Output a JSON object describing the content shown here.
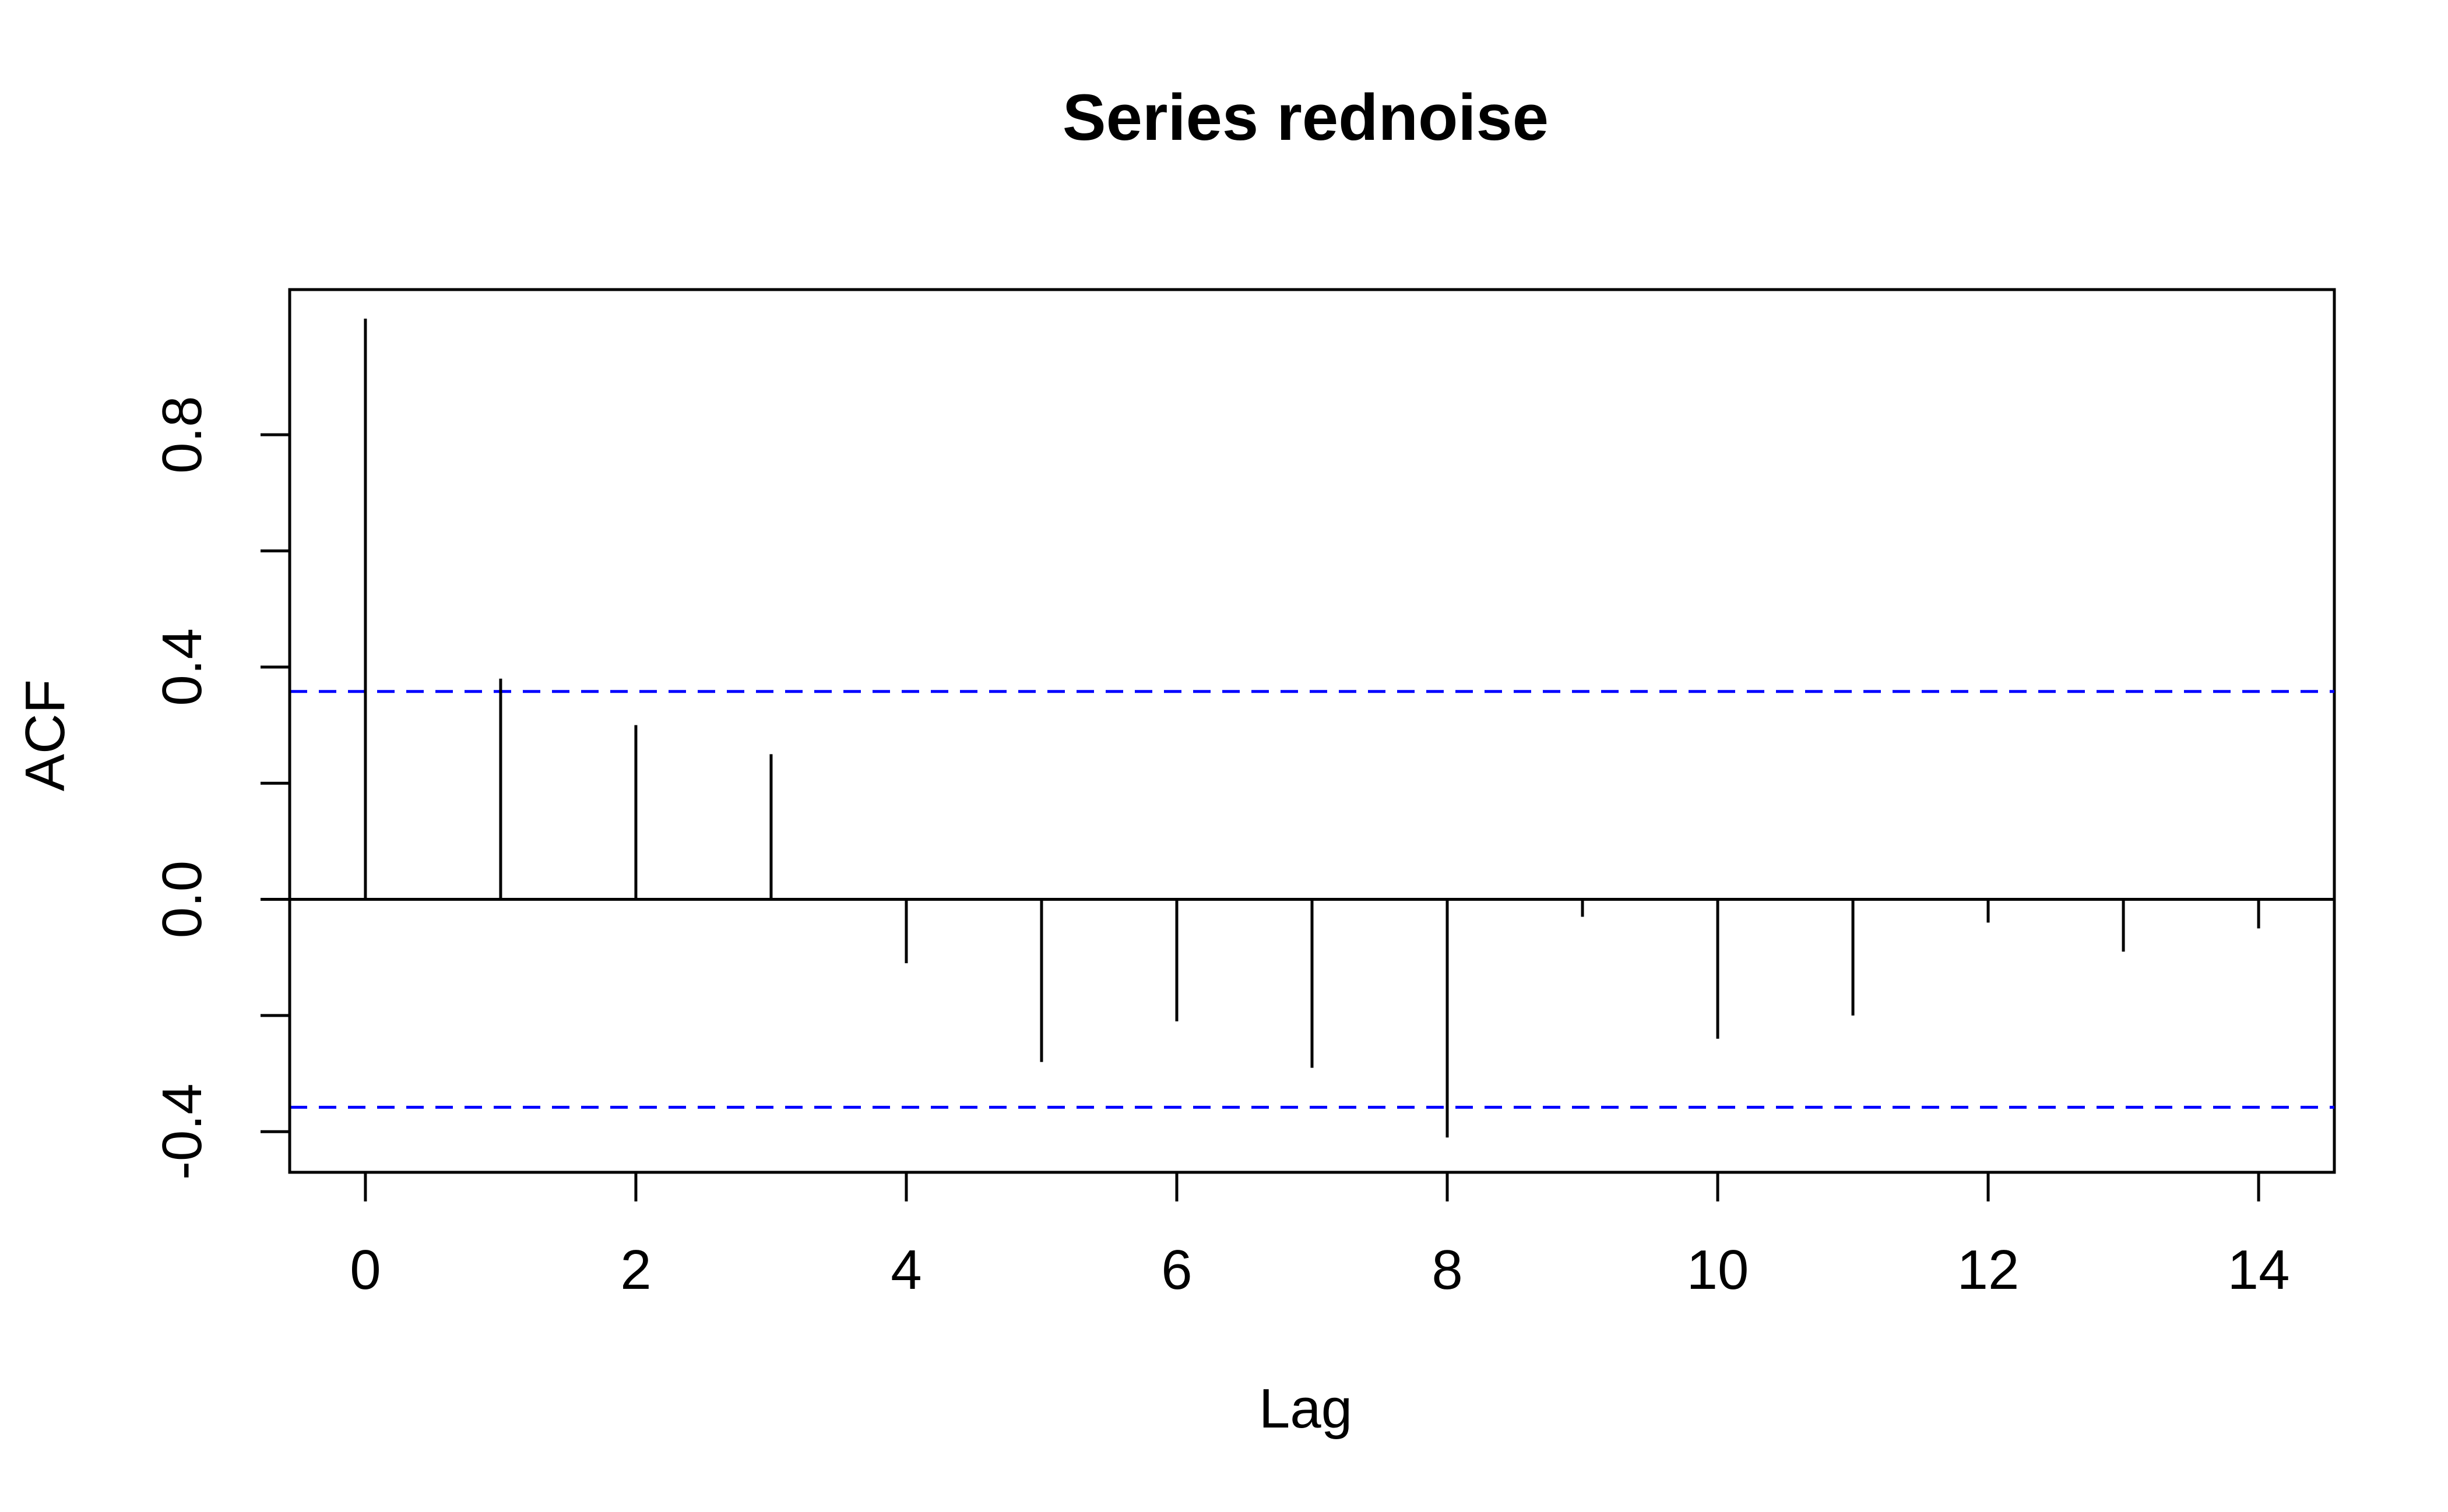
{
  "chart_data": {
    "type": "bar",
    "title": "Series  rednoise",
    "xlabel": "Lag",
    "ylabel": "ACF",
    "x": [
      0,
      1,
      2,
      3,
      4,
      5,
      6,
      7,
      8,
      9,
      10,
      11,
      12,
      13,
      14
    ],
    "values": [
      1.0,
      0.38,
      0.3,
      0.25,
      -0.11,
      -0.28,
      -0.21,
      -0.29,
      -0.41,
      -0.03,
      -0.24,
      -0.2,
      -0.04,
      -0.09,
      -0.05
    ],
    "xlim": [
      -0.56,
      14.56
    ],
    "ylim": [
      -0.47,
      1.05
    ],
    "x_ticks": [
      "0",
      "2",
      "4",
      "6",
      "8",
      "10",
      "12",
      "14"
    ],
    "y_ticks": [
      "-0.4",
      "0.0",
      "0.4",
      "0.8"
    ],
    "confidence_bound": 0.358,
    "zero_line": true,
    "grid": false,
    "colors": {
      "spike": "#000000",
      "confidence": "#0000ff"
    }
  }
}
